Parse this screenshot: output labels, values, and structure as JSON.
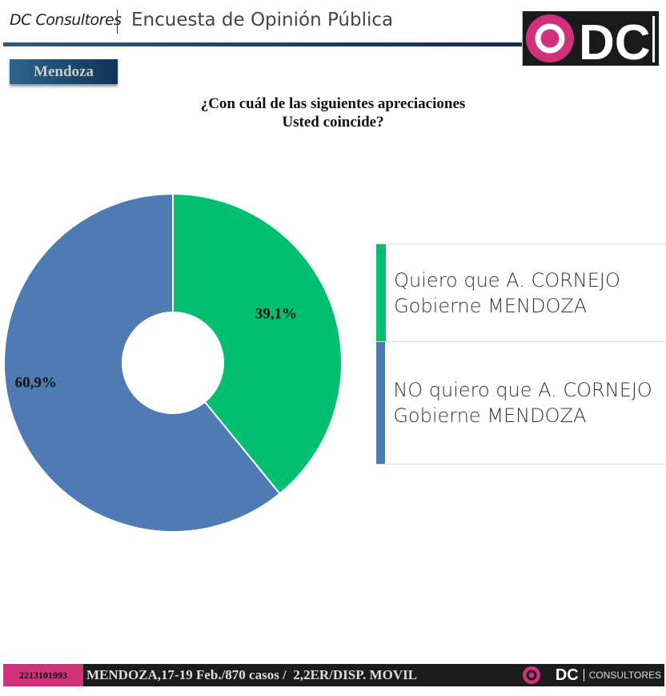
{
  "header": {
    "brand": "DC Consultores",
    "title": "Encuesta de Opinión Pública",
    "logo_text": "DC",
    "region": "Mendoza"
  },
  "colors": {
    "green": "#00BF6F",
    "blue": "#4F7BB4",
    "pink": "#D1307A"
  },
  "chart_data": {
    "type": "pie",
    "variant": "donut",
    "title": "¿Con cuál de las siguientes apreciaciones Usted coincide?",
    "title_lines": [
      "¿Con cuál de las siguientes apreciaciones",
      "Usted coincide?"
    ],
    "slices": [
      {
        "label": "Quiero que A. CORNEJO Gobierne MENDOZA",
        "value": 39.1,
        "display": "39,1%",
        "color": "#00BF6F"
      },
      {
        "label": "NO quiero que A. CORNEJO Gobierne MENDOZA",
        "value": 60.9,
        "display": "60,9%",
        "color": "#4F7BB4"
      }
    ],
    "legend_placement": "right"
  },
  "footer": {
    "phone": "2213101993",
    "info": "MENDOZA,17-19 Feb./870 casos /  2,2ER/DISP. MOVIL",
    "logo_text": "DC",
    "consultores": "CONSULTORES"
  }
}
